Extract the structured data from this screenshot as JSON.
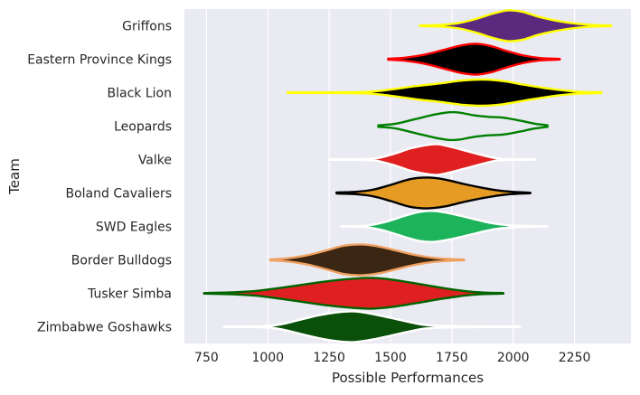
{
  "chart_data": {
    "type": "violin",
    "orientation": "horizontal",
    "xlabel": "Possible Performances",
    "ylabel": "Team",
    "xlim": [
      660,
      2480
    ],
    "xticks": [
      750,
      1000,
      1250,
      1500,
      1750,
      2000,
      2250
    ],
    "grid": true,
    "background": "#eaeaf2",
    "series": [
      {
        "name": "Griffons",
        "fill": "#5b2a7e",
        "stroke": "#ffff00",
        "min": 1620,
        "max": 2400,
        "profile": [
          [
            1620,
            0.02
          ],
          [
            1700,
            0.05
          ],
          [
            1780,
            0.18
          ],
          [
            1850,
            0.45
          ],
          [
            1920,
            0.8
          ],
          [
            1980,
            1.0
          ],
          [
            2040,
            0.9
          ],
          [
            2100,
            0.6
          ],
          [
            2170,
            0.35
          ],
          [
            2250,
            0.15
          ],
          [
            2330,
            0.05
          ],
          [
            2400,
            0.02
          ]
        ]
      },
      {
        "name": "Eastern Province Kings",
        "fill": "#000000",
        "stroke": "#ff0000",
        "min": 1490,
        "max": 2190,
        "profile": [
          [
            1490,
            0.03
          ],
          [
            1560,
            0.1
          ],
          [
            1640,
            0.3
          ],
          [
            1720,
            0.62
          ],
          [
            1790,
            0.9
          ],
          [
            1850,
            1.0
          ],
          [
            1910,
            0.85
          ],
          [
            1970,
            0.55
          ],
          [
            2040,
            0.25
          ],
          [
            2110,
            0.08
          ],
          [
            2190,
            0.02
          ]
        ]
      },
      {
        "name": "Black Lion",
        "fill": "#000000",
        "stroke": "#ffff00",
        "min": 1080,
        "max": 2360,
        "profile": [
          [
            1080,
            0.01
          ],
          [
            1250,
            0.02
          ],
          [
            1400,
            0.05
          ],
          [
            1500,
            0.2
          ],
          [
            1600,
            0.42
          ],
          [
            1700,
            0.6
          ],
          [
            1800,
            0.8
          ],
          [
            1880,
            0.85
          ],
          [
            1960,
            0.75
          ],
          [
            2050,
            0.5
          ],
          [
            2150,
            0.25
          ],
          [
            2250,
            0.08
          ],
          [
            2360,
            0.02
          ]
        ]
      },
      {
        "name": "Leopards",
        "fill": "#eaeaf2",
        "stroke": "#008000",
        "min": 1450,
        "max": 2140,
        "profile": [
          [
            1450,
            0.05
          ],
          [
            1520,
            0.15
          ],
          [
            1600,
            0.45
          ],
          [
            1680,
            0.75
          ],
          [
            1740,
            0.9
          ],
          [
            1780,
            0.88
          ],
          [
            1840,
            0.7
          ],
          [
            1900,
            0.6
          ],
          [
            1960,
            0.55
          ],
          [
            2030,
            0.35
          ],
          [
            2090,
            0.15
          ],
          [
            2140,
            0.05
          ]
        ]
      },
      {
        "name": "Valke",
        "fill": "#e02020",
        "stroke": "#ffffff",
        "min": 1250,
        "max": 2090,
        "profile": [
          [
            1250,
            0.01
          ],
          [
            1400,
            0.03
          ],
          [
            1450,
            0.1
          ],
          [
            1520,
            0.4
          ],
          [
            1580,
            0.72
          ],
          [
            1640,
            0.92
          ],
          [
            1690,
            1.0
          ],
          [
            1740,
            0.85
          ],
          [
            1800,
            0.6
          ],
          [
            1870,
            0.3
          ],
          [
            1930,
            0.08
          ],
          [
            2000,
            0.02
          ],
          [
            2090,
            0.01
          ]
        ]
      },
      {
        "name": "Boland Cavaliers",
        "fill": "#e69c24",
        "stroke": "#000000",
        "min": 1280,
        "max": 2070,
        "profile": [
          [
            1280,
            0.03
          ],
          [
            1360,
            0.08
          ],
          [
            1430,
            0.22
          ],
          [
            1500,
            0.52
          ],
          [
            1580,
            0.9
          ],
          [
            1650,
            1.0
          ],
          [
            1720,
            0.88
          ],
          [
            1800,
            0.58
          ],
          [
            1880,
            0.32
          ],
          [
            1950,
            0.14
          ],
          [
            2010,
            0.06
          ],
          [
            2070,
            0.02
          ]
        ]
      },
      {
        "name": "SWD Eagles",
        "fill": "#1db35b",
        "stroke": "#ffffff",
        "min": 1300,
        "max": 2140,
        "profile": [
          [
            1300,
            0.02
          ],
          [
            1400,
            0.05
          ],
          [
            1480,
            0.3
          ],
          [
            1560,
            0.7
          ],
          [
            1620,
            0.95
          ],
          [
            1680,
            1.0
          ],
          [
            1750,
            0.82
          ],
          [
            1830,
            0.52
          ],
          [
            1910,
            0.22
          ],
          [
            1980,
            0.08
          ],
          [
            2060,
            0.03
          ],
          [
            2140,
            0.01
          ]
        ]
      },
      {
        "name": "Border Bulldogs",
        "fill": "#3a2612",
        "stroke": "#f0a060",
        "min": 1010,
        "max": 1800,
        "profile": [
          [
            1010,
            0.03
          ],
          [
            1080,
            0.1
          ],
          [
            1160,
            0.3
          ],
          [
            1240,
            0.62
          ],
          [
            1310,
            0.92
          ],
          [
            1380,
            1.0
          ],
          [
            1450,
            0.88
          ],
          [
            1520,
            0.62
          ],
          [
            1600,
            0.32
          ],
          [
            1680,
            0.12
          ],
          [
            1750,
            0.05
          ],
          [
            1800,
            0.02
          ]
        ]
      },
      {
        "name": "Tusker Simba",
        "fill": "#e02020",
        "stroke": "#006400",
        "min": 740,
        "max": 1960,
        "profile": [
          [
            740,
            0.02
          ],
          [
            850,
            0.06
          ],
          [
            950,
            0.15
          ],
          [
            1050,
            0.35
          ],
          [
            1150,
            0.58
          ],
          [
            1250,
            0.8
          ],
          [
            1350,
            0.95
          ],
          [
            1420,
            1.0
          ],
          [
            1500,
            0.9
          ],
          [
            1600,
            0.65
          ],
          [
            1700,
            0.38
          ],
          [
            1800,
            0.15
          ],
          [
            1880,
            0.05
          ],
          [
            1960,
            0.02
          ]
        ]
      },
      {
        "name": "Zimbabwe Goshawks",
        "fill": "#0a4f0a",
        "stroke": "#ffffff",
        "min": 820,
        "max": 2030,
        "profile": [
          [
            820,
            0.01
          ],
          [
            980,
            0.03
          ],
          [
            1050,
            0.15
          ],
          [
            1130,
            0.45
          ],
          [
            1210,
            0.75
          ],
          [
            1290,
            0.95
          ],
          [
            1350,
            1.0
          ],
          [
            1420,
            0.85
          ],
          [
            1500,
            0.58
          ],
          [
            1580,
            0.3
          ],
          [
            1650,
            0.1
          ],
          [
            1800,
            0.03
          ],
          [
            2030,
            0.01
          ]
        ]
      }
    ]
  }
}
